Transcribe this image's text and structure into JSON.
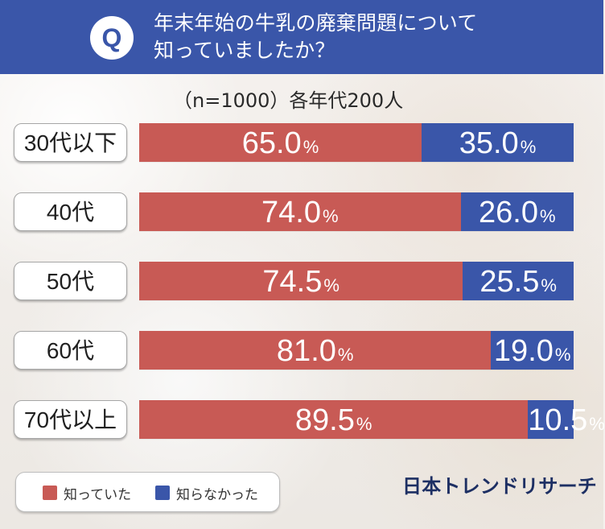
{
  "header": {
    "badge": "Q",
    "title_line_1": "年末年始の牛乳の廃棄問題について",
    "title_line_2": "知っていましたか？"
  },
  "subtitle": "（n=1000）各年代200人",
  "legend": {
    "known_label": "知っていた",
    "unknown_label": "知らなかった"
  },
  "logo": "日本トレンドリサーチ",
  "colors": {
    "known": "#c85a55",
    "unknown": "#3a56a9",
    "header": "#3a56a9"
  },
  "chart_data": {
    "type": "bar",
    "categories": [
      "30代以下",
      "40代",
      "50代",
      "60代",
      "70代以上"
    ],
    "series": [
      {
        "name": "知っていた",
        "values": [
          65.0,
          74.0,
          74.5,
          81.0,
          89.5
        ]
      },
      {
        "name": "知らなかった",
        "values": [
          35.0,
          26.0,
          25.5,
          19.0,
          10.5
        ]
      }
    ],
    "value_labels": {
      "known": [
        "65.0",
        "74.0",
        "74.5",
        "81.0",
        "89.5"
      ],
      "unknown": [
        "35.0",
        "26.0",
        "25.5",
        "19.0",
        "10.5"
      ],
      "percent_sign": "%"
    },
    "title": "年末年始の牛乳の廃棄問題について知っていましたか？",
    "xlabel": "",
    "ylabel": "",
    "xlim": [
      0,
      100
    ]
  }
}
